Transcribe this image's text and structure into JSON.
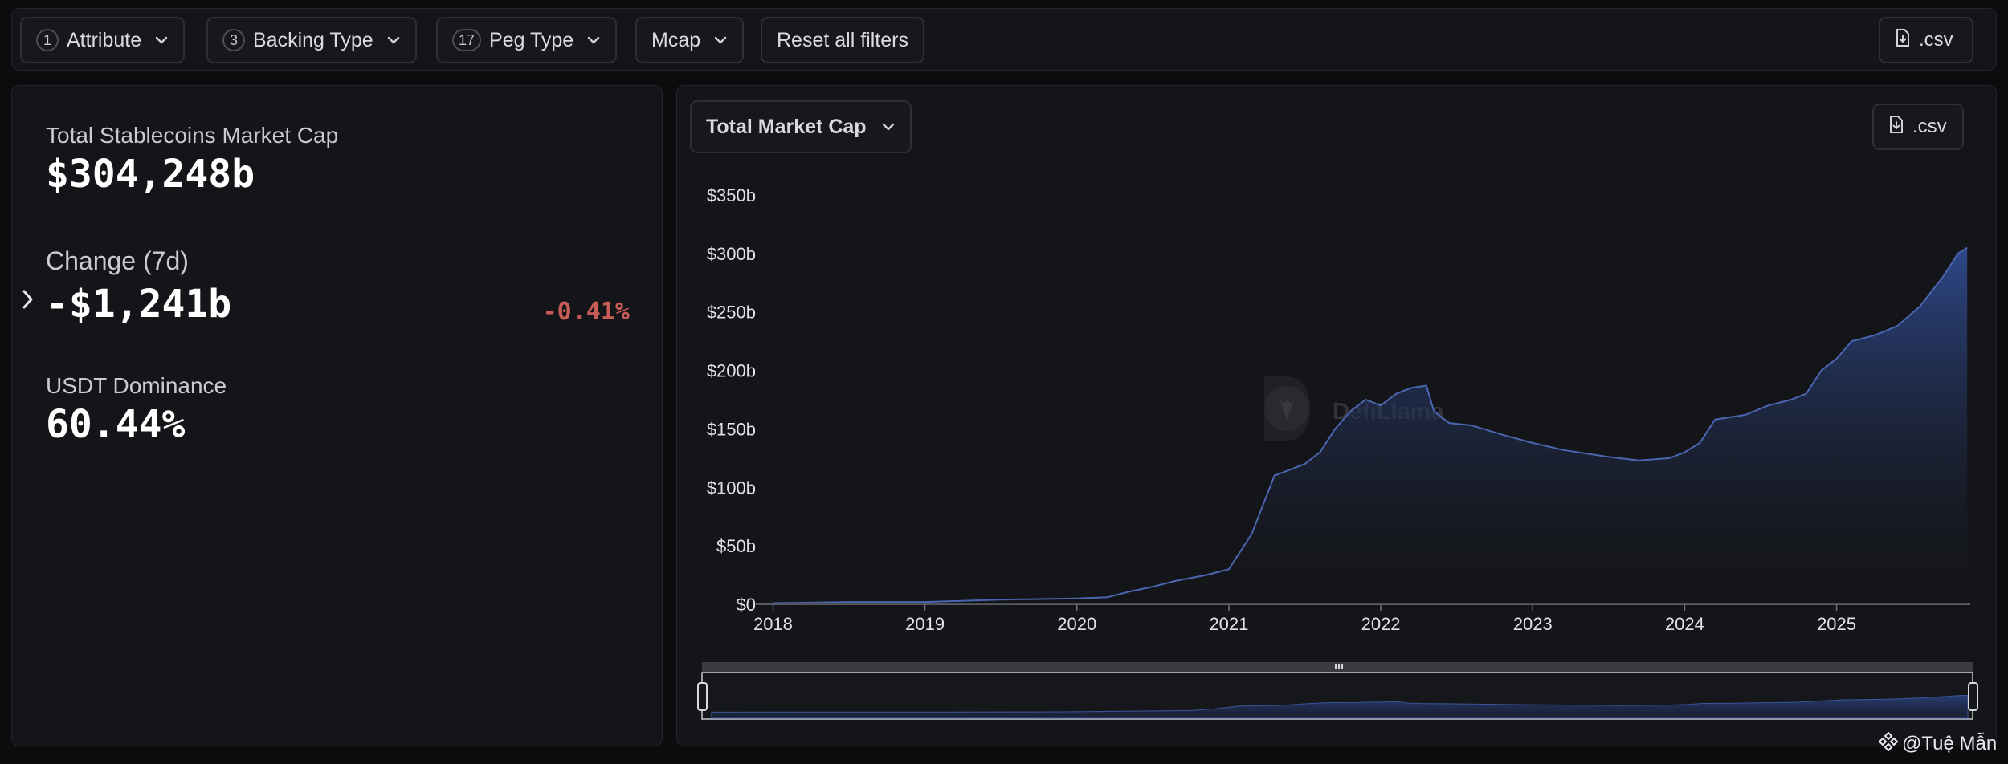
{
  "filters": [
    {
      "count": "1",
      "label": "Attribute"
    },
    {
      "count": "3",
      "label": "Backing Type"
    },
    {
      "count": "17",
      "label": "Peg Type"
    },
    {
      "count": "",
      "label": "Mcap"
    }
  ],
  "reset_label": "Reset all filters",
  "csv_label": ".csv",
  "stats": {
    "total_label": "Total Stablecoins Market Cap",
    "total_value": "$304,248b",
    "change_label": "Change (7d)",
    "change_value": "-$1,241b",
    "change_pct": "-0.41%",
    "dominance_label": "USDT Dominance",
    "dominance_value": "60.44%"
  },
  "chart": {
    "selector_label": "Total Market Cap",
    "csv_label": ".csv",
    "watermark_text": "DefiLlama"
  },
  "credit": "@Tuệ Mẫn",
  "colors": {
    "accent_line": "#4a66b0",
    "area_top": "#2f4a8e",
    "negative": "#c85c56"
  },
  "chart_data": {
    "type": "area",
    "series": [
      {
        "x": [
          2018.0,
          2018.5,
          2019.0,
          2019.5,
          2020.0,
          2020.2,
          2020.35,
          2020.5,
          2020.65,
          2020.85,
          2021.0,
          2021.15,
          2021.3,
          2021.4,
          2021.5,
          2021.6,
          2021.7,
          2021.8,
          2021.9,
          2022.0,
          2022.1,
          2022.2,
          2022.3,
          2022.35,
          2022.45,
          2022.6,
          2022.8,
          2023.0,
          2023.2,
          2023.5,
          2023.7,
          2023.9,
          2024.0,
          2024.1,
          2024.2,
          2024.4,
          2024.55,
          2024.7,
          2024.8,
          2024.9,
          2025.0,
          2025.1,
          2025.25,
          2025.4,
          2025.55,
          2025.7,
          2025.8,
          2025.86
        ],
        "y": [
          1,
          2,
          2,
          4,
          5,
          6,
          11,
          15,
          20,
          25,
          30,
          60,
          110,
          115,
          120,
          130,
          150,
          165,
          175,
          170,
          180,
          185,
          187,
          165,
          155,
          153,
          145,
          138,
          132,
          126,
          123,
          125,
          130,
          138,
          158,
          162,
          170,
          175,
          180,
          200,
          210,
          225,
          230,
          238,
          255,
          280,
          300,
          305
        ]
      }
    ],
    "title": "",
    "xlabel": "",
    "ylabel": "",
    "x_ticks": [
      "2018",
      "2019",
      "2020",
      "2021",
      "2022",
      "2023",
      "2024",
      "2025"
    ],
    "y_ticks": [
      "$0",
      "$50b",
      "$100b",
      "$150b",
      "$200b",
      "$250b",
      "$300b",
      "$350b"
    ],
    "xlim": [
      2017.95,
      2025.88
    ],
    "ylim": [
      0,
      350
    ],
    "grid": false,
    "legend": "none"
  }
}
